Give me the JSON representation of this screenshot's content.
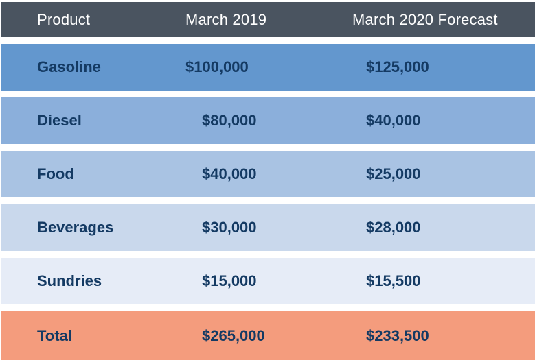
{
  "palette": {
    "header_bg": "#4A5460",
    "header_text": "#FFFFFF",
    "body_text": "#143A63",
    "gap": "#FFFFFF",
    "total_bg": "#F49C7D",
    "row_blues": [
      "#6397CE",
      "#8BAFDB",
      "#A9C3E3",
      "#C9D8EC",
      "#E6ECF7"
    ]
  },
  "chart_data": {
    "type": "table",
    "title": "",
    "columns": [
      "Product",
      "March 2019",
      "March 2020 Forecast"
    ],
    "rows": [
      {
        "cells": [
          "Gasoline",
          "$100,000",
          "$125,000"
        ],
        "bg": "#6397CE",
        "text": "#143A63",
        "is_total": false
      },
      {
        "cells": [
          "Diesel",
          "$80,000",
          "$40,000"
        ],
        "bg": "#8BAFDB",
        "text": "#143A63",
        "is_total": false
      },
      {
        "cells": [
          "Food",
          "$40,000",
          "$25,000"
        ],
        "bg": "#A9C3E3",
        "text": "#143A63",
        "is_total": false
      },
      {
        "cells": [
          "Beverages",
          "$30,000",
          "$28,000"
        ],
        "bg": "#C9D8EC",
        "text": "#143A63",
        "is_total": false
      },
      {
        "cells": [
          "Sundries",
          "$15,000",
          "$15,500"
        ],
        "bg": "#E6ECF7",
        "text": "#143A63",
        "is_total": false
      },
      {
        "cells": [
          "Total",
          "$265,000",
          "$233,500"
        ],
        "bg": "#F49C7D",
        "text": "#143A63",
        "is_total": true
      }
    ],
    "values_numeric": {
      "march_2019": [
        100000,
        80000,
        40000,
        30000,
        15000
      ],
      "march_2020_forecast": [
        125000,
        40000,
        25000,
        28000,
        15500
      ],
      "total_march_2019": 265000,
      "total_march_2020_forecast": 233500
    },
    "layout_hints": {
      "row_band_style": "full-width horizontal bands separated by white gaps",
      "shading": "blue gradient darkest at top, salmon total row",
      "alignment": "left-aligned columns"
    }
  }
}
